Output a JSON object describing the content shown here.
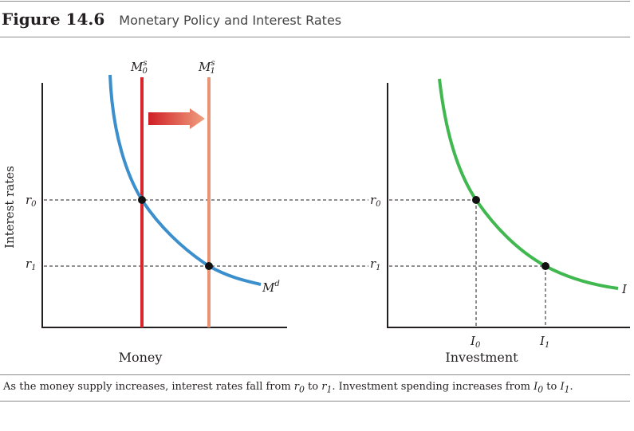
{
  "figure": {
    "number": "Figure 14.6",
    "title": "Monetary Policy and Interest Rates"
  },
  "left_panel": {
    "y_axis_label": "Interest rates",
    "x_axis_label": "Money",
    "rate_label_0": "r",
    "rate_label_0_sub": "0",
    "rate_label_1": "r",
    "rate_label_1_sub": "1",
    "supply_label_0": "M",
    "supply_label_0_sup": "s",
    "supply_label_0_sub": "0",
    "supply_label_1": "M",
    "supply_label_1_sup": "s",
    "supply_label_1_sub": "1",
    "demand_label": "M",
    "demand_label_sup": "d"
  },
  "right_panel": {
    "x_axis_label": "Investment",
    "rate_label_0": "r",
    "rate_label_0_sub": "0",
    "rate_label_1": "r",
    "rate_label_1_sub": "1",
    "inv_label_0": "I",
    "inv_label_0_sub": "0",
    "inv_label_1": "I",
    "inv_label_1_sub": "1",
    "curve_label": "I"
  },
  "caption": {
    "part1": "As the money supply increases, interest rates fall from ",
    "r0": "r",
    "r0_sub": "0",
    "part2": " to ",
    "r1": "r",
    "r1_sub": "1",
    "part3": ". Investment spending increases from ",
    "i0": "I",
    "i0_sub": "0",
    "part4": " to ",
    "i1": "I",
    "i1_sub": "1",
    "part5": "."
  },
  "colors": {
    "money_demand": "#3a8fcc",
    "money_supply_0": "#d9262a",
    "money_supply_1": "#e99477",
    "investment": "#41b84f",
    "axis": "#231f20",
    "point": "#111111"
  }
}
